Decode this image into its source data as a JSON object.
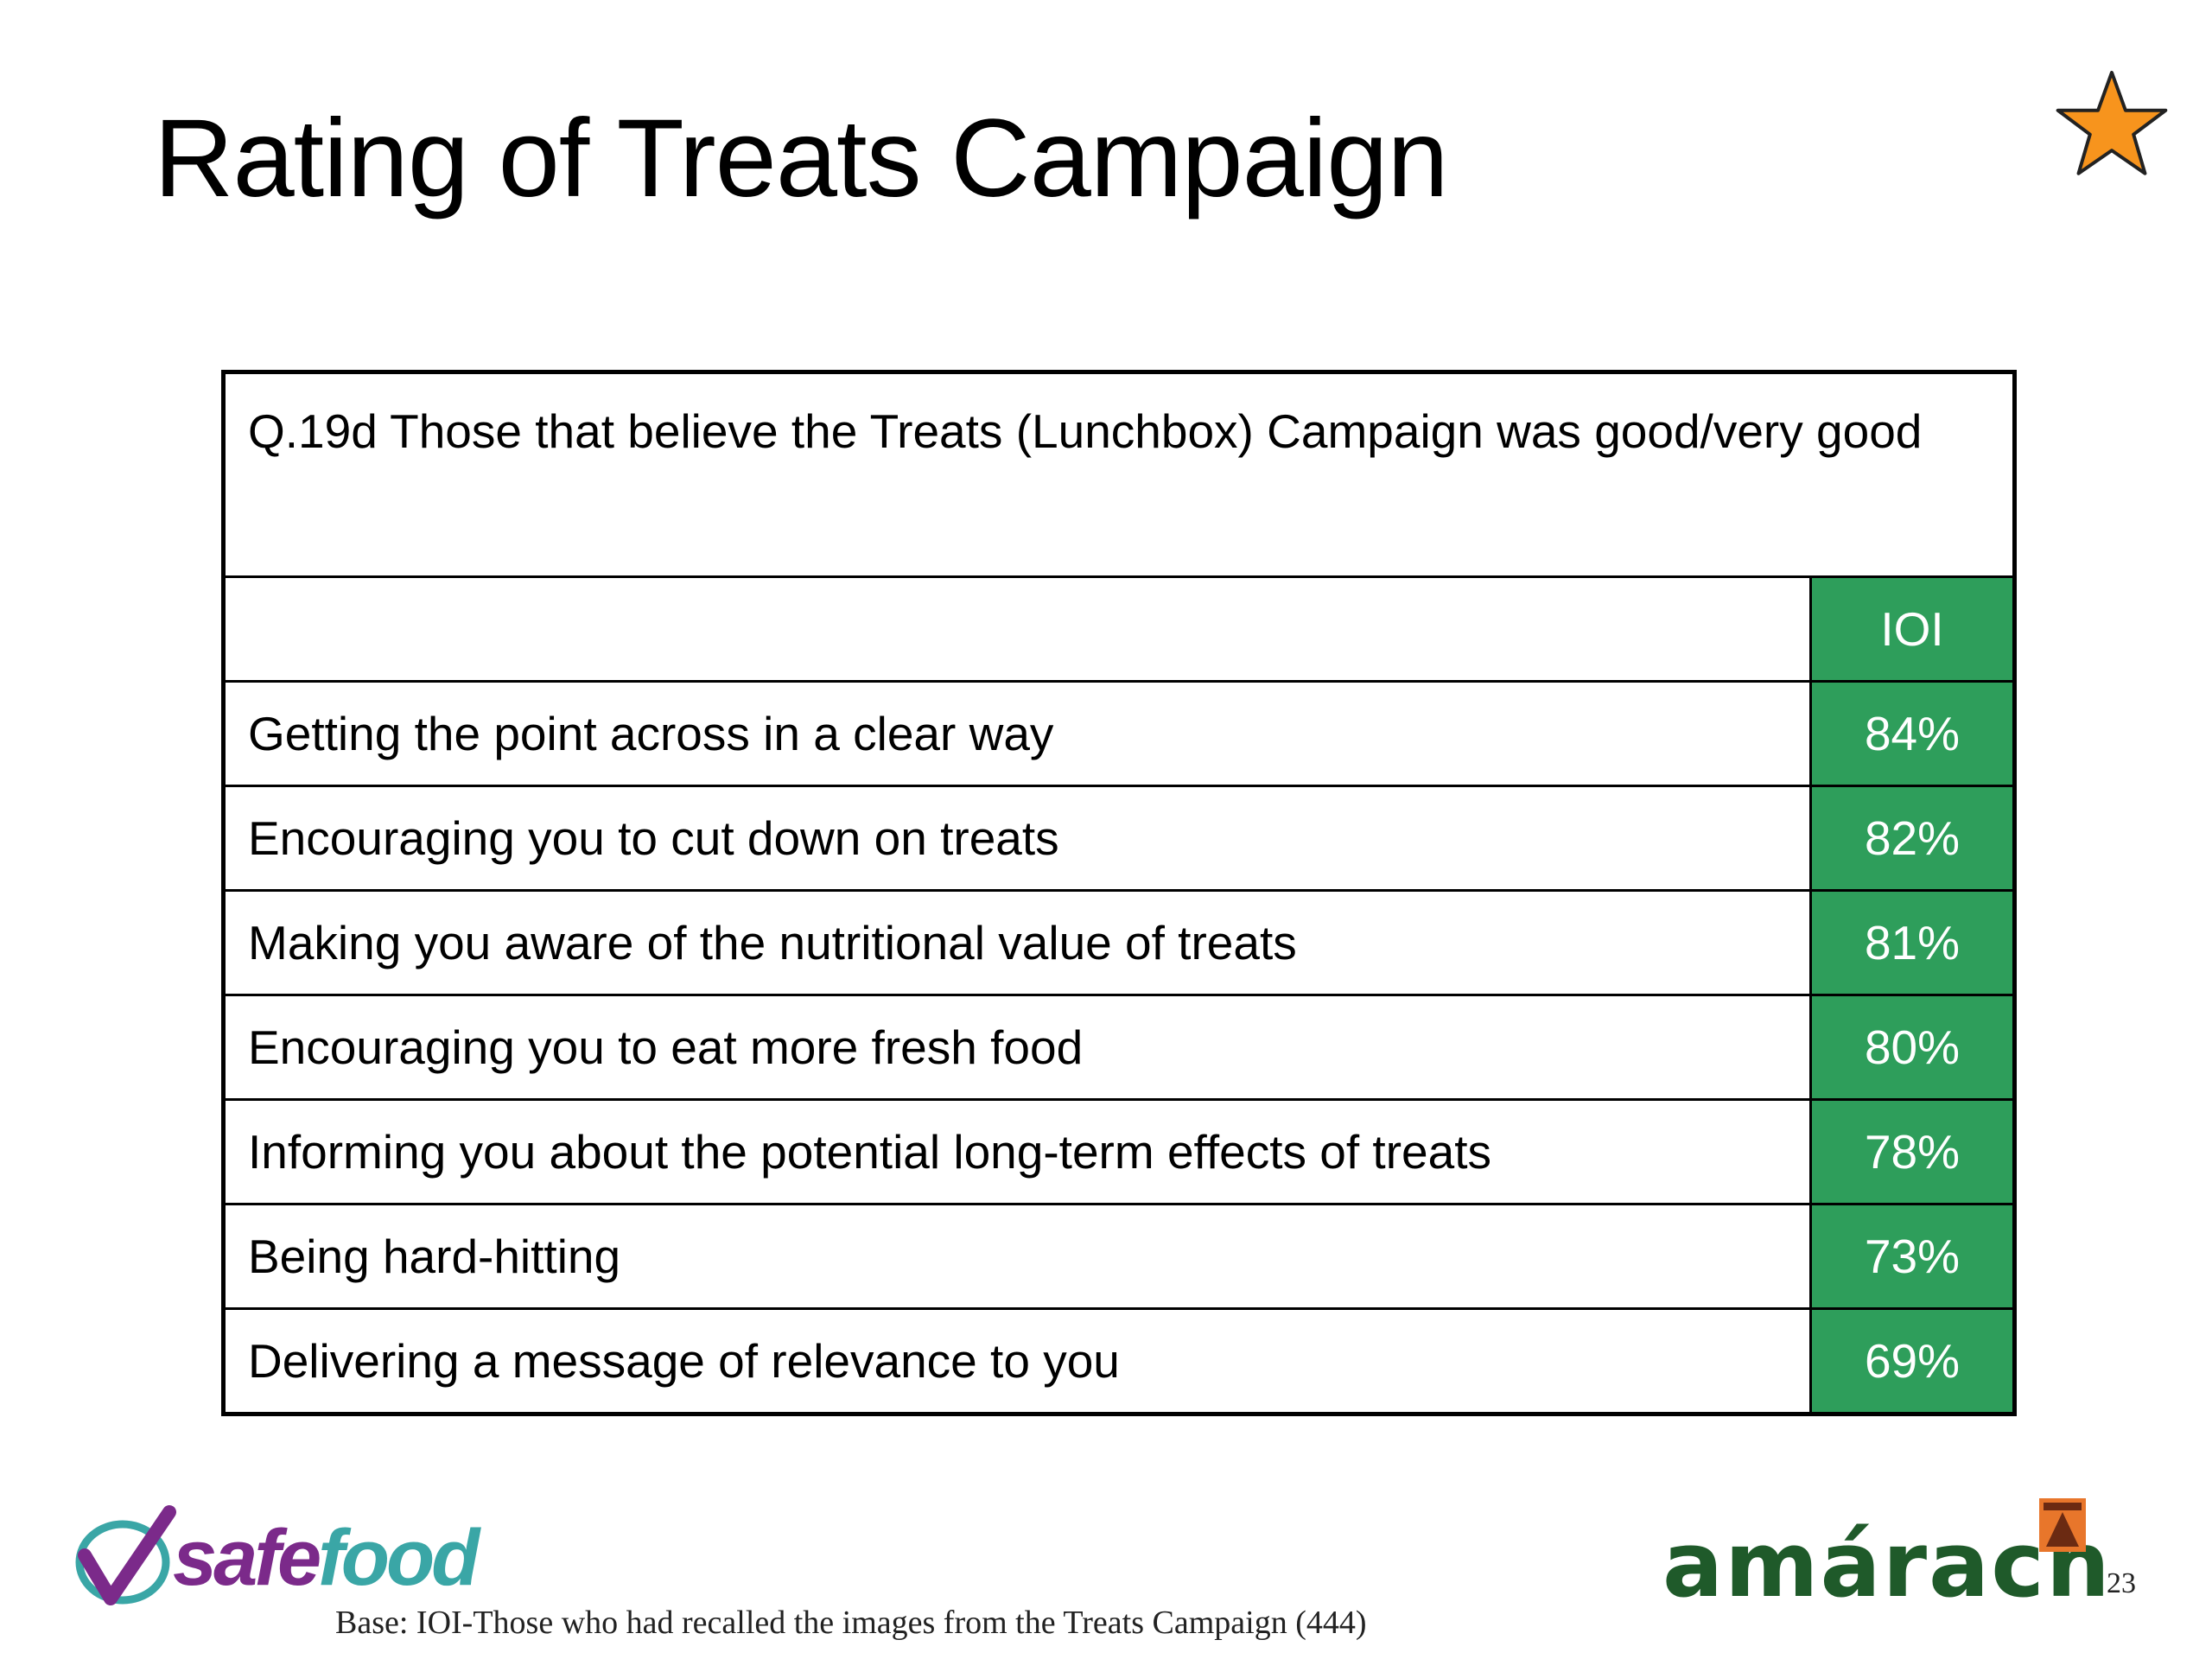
{
  "slide": {
    "title": "Rating of Treats Campaign",
    "star_icon": "orange-star-icon",
    "accent_color": "#2e9e5b",
    "star_color": "#f7941d"
  },
  "table": {
    "question": "Q.19d Those that believe the Treats (Lunchbox) Campaign was good/very good",
    "header_label": "",
    "header_value": "IOI",
    "rows": [
      {
        "label": "Getting the point across in a clear way",
        "value": "84%"
      },
      {
        "label": "Encouraging you to cut down on treats",
        "value": "82%"
      },
      {
        "label": "Making you aware of the nutritional value of treats",
        "value": "81%"
      },
      {
        "label": "Encouraging you to eat more fresh food",
        "value": "80%"
      },
      {
        "label": "Informing you about the potential long-term effects of treats",
        "value": "78%"
      },
      {
        "label": "Being hard-hitting",
        "value": "73%"
      },
      {
        "label": "Delivering a message of relevance to you",
        "value": "69%"
      }
    ]
  },
  "footer": {
    "safefood_logo": {
      "part1": "safe",
      "part2": "food",
      "icon": "checkmark-swoosh-icon"
    },
    "base_note": "Base: IOI-Those who had recalled the images from the Treats Campaign (444)",
    "amarach_logo": {
      "text": "amárach",
      "icon": "amarach-mark-icon"
    },
    "page_number": "23"
  }
}
